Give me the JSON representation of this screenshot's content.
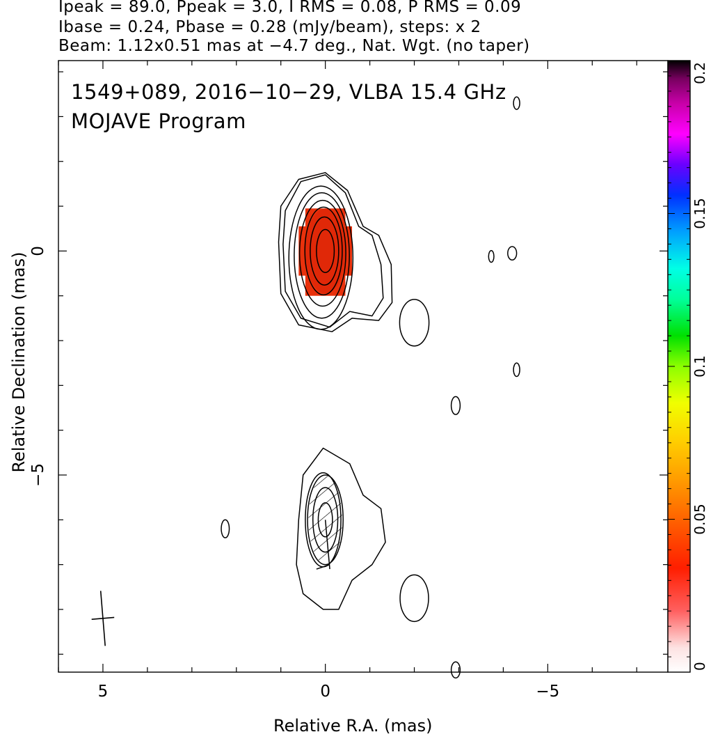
{
  "header": {
    "line1": "Ipeak = 89.0, Ppeak = 3.0, I RMS = 0.08, P RMS = 0.09",
    "line2": "Ibase = 0.24, Pbase = 0.28 (mJy/beam), steps: x 2",
    "line3": "Beam: 1.12x0.51 mas at −4.7 deg., Nat. Wgt. (no taper)"
  },
  "overlay": {
    "line1": "1549+089, 2016−10−29, VLBA 15.4 GHz",
    "line2": "MOJAVE Program"
  },
  "chart_data": {
    "type": "contour",
    "xlabel": "Relative R.A. (mas)",
    "ylabel": "Relative Declination (mas)",
    "xlim": [
      6.0,
      -7.7
    ],
    "ylim": [
      -9.4,
      4.25
    ],
    "x_ticks": [
      {
        "value": 5,
        "label": "5"
      },
      {
        "value": 0,
        "label": "0"
      },
      {
        "value": -5,
        "label": "−5"
      }
    ],
    "y_ticks": [
      {
        "value": 0,
        "label": "0"
      },
      {
        "value": -5,
        "label": "−5"
      }
    ],
    "colorbar": {
      "range": [
        0,
        0.2
      ],
      "ticks": [
        {
          "value": 0,
          "label": "0"
        },
        {
          "value": 0.05,
          "label": "0.05"
        },
        {
          "value": 0.1,
          "label": "0.1"
        },
        {
          "value": 0.15,
          "label": "0.15"
        },
        {
          "value": 0.2,
          "label": "0.2"
        }
      ]
    },
    "beam": {
      "major_mas": 1.12,
      "minor_mas": 0.51,
      "pa_deg": -4.7,
      "center": [
        5.0,
        -8.2
      ]
    },
    "peak_contours": [
      {
        "cx": 0.1,
        "cy": -0.15,
        "rx": 0.72,
        "ry": 1.6
      },
      {
        "cx": 0.08,
        "cy": -0.1,
        "rx": 0.62,
        "ry": 1.4
      },
      {
        "cx": 0.06,
        "cy": -0.05,
        "rx": 0.52,
        "ry": 1.18
      },
      {
        "cx": 0.04,
        "cy": 0.0,
        "rx": 0.42,
        "ry": 0.98
      },
      {
        "cx": 0.02,
        "cy": 0.0,
        "rx": 0.32,
        "ry": 0.76
      },
      {
        "cx": 0.0,
        "cy": 0.0,
        "rx": 0.2,
        "ry": 0.48
      }
    ],
    "jet_contours": [
      {
        "cx": 0.0,
        "cy": -6.0,
        "rx": 0.4,
        "ry": 1.0
      },
      {
        "cx": 0.0,
        "cy": -6.0,
        "rx": 0.28,
        "ry": 0.72
      },
      {
        "cx": 0.0,
        "cy": -6.0,
        "rx": 0.16,
        "ry": 0.38
      }
    ],
    "small_islands": [
      {
        "cx": -2.0,
        "cy": -1.6,
        "rx": 0.33,
        "ry": 0.52
      },
      {
        "cx": -2.0,
        "cy": -7.75,
        "rx": 0.32,
        "ry": 0.52
      },
      {
        "cx": 2.25,
        "cy": -6.2,
        "rx": 0.09,
        "ry": 0.2
      },
      {
        "cx": -2.93,
        "cy": -3.45,
        "rx": 0.1,
        "ry": 0.2
      },
      {
        "cx": -3.73,
        "cy": -0.12,
        "rx": 0.06,
        "ry": 0.13
      },
      {
        "cx": -4.2,
        "cy": -0.05,
        "rx": 0.1,
        "ry": 0.15
      },
      {
        "cx": -4.3,
        "cy": -2.65,
        "rx": 0.07,
        "ry": 0.15
      },
      {
        "cx": -4.3,
        "cy": 3.3,
        "rx": 0.07,
        "ry": 0.14
      },
      {
        "cx": -2.93,
        "cy": -9.35,
        "rx": 0.1,
        "ry": 0.18
      }
    ],
    "colors": {
      "contour": "#000000",
      "core_polarization": "#e8310c"
    }
  }
}
